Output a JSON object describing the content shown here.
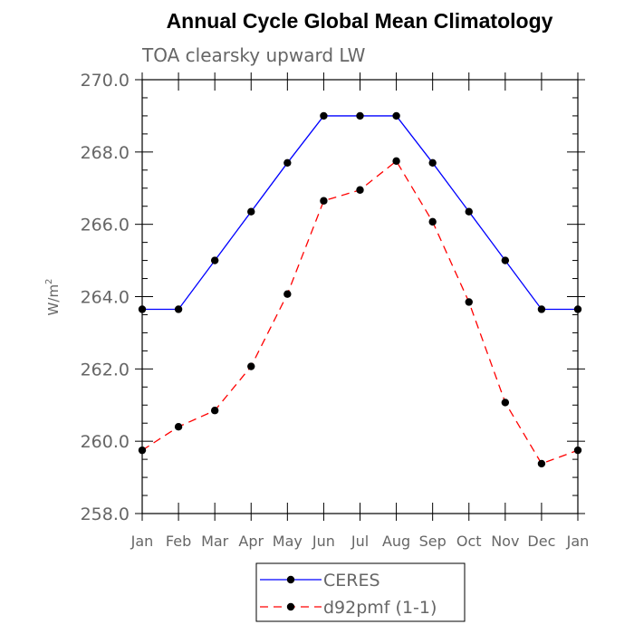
{
  "chart_data": {
    "type": "line",
    "title": "Annual Cycle Global Mean Climatology",
    "subtitle": "TOA clearsky upward LW",
    "xlabel": "",
    "ylabel": "W/m",
    "ylabel_superscript": "2",
    "categories": [
      "Jan",
      "Feb",
      "Mar",
      "Apr",
      "May",
      "Jun",
      "Jul",
      "Aug",
      "Sep",
      "Oct",
      "Nov",
      "Dec",
      "Jan"
    ],
    "yticks": [
      "258.0",
      "260.0",
      "262.0",
      "264.0",
      "266.0",
      "268.0",
      "270.0"
    ],
    "ylim": [
      258,
      270
    ],
    "grid": false,
    "legend_position": "bottom-center",
    "series": [
      {
        "name": "CERES",
        "color": "#0000ff",
        "dashed": false,
        "values": [
          263.65,
          263.65,
          265.0,
          266.35,
          267.7,
          269.0,
          269.0,
          269.0,
          267.7,
          266.35,
          265.0,
          263.65,
          263.65
        ]
      },
      {
        "name": "d92pmf (1-1)",
        "color": "#ff0000",
        "dashed": true,
        "values": [
          259.75,
          260.4,
          260.85,
          262.07,
          264.07,
          266.65,
          266.95,
          267.75,
          266.07,
          263.85,
          261.07,
          259.38,
          259.75
        ]
      }
    ]
  }
}
